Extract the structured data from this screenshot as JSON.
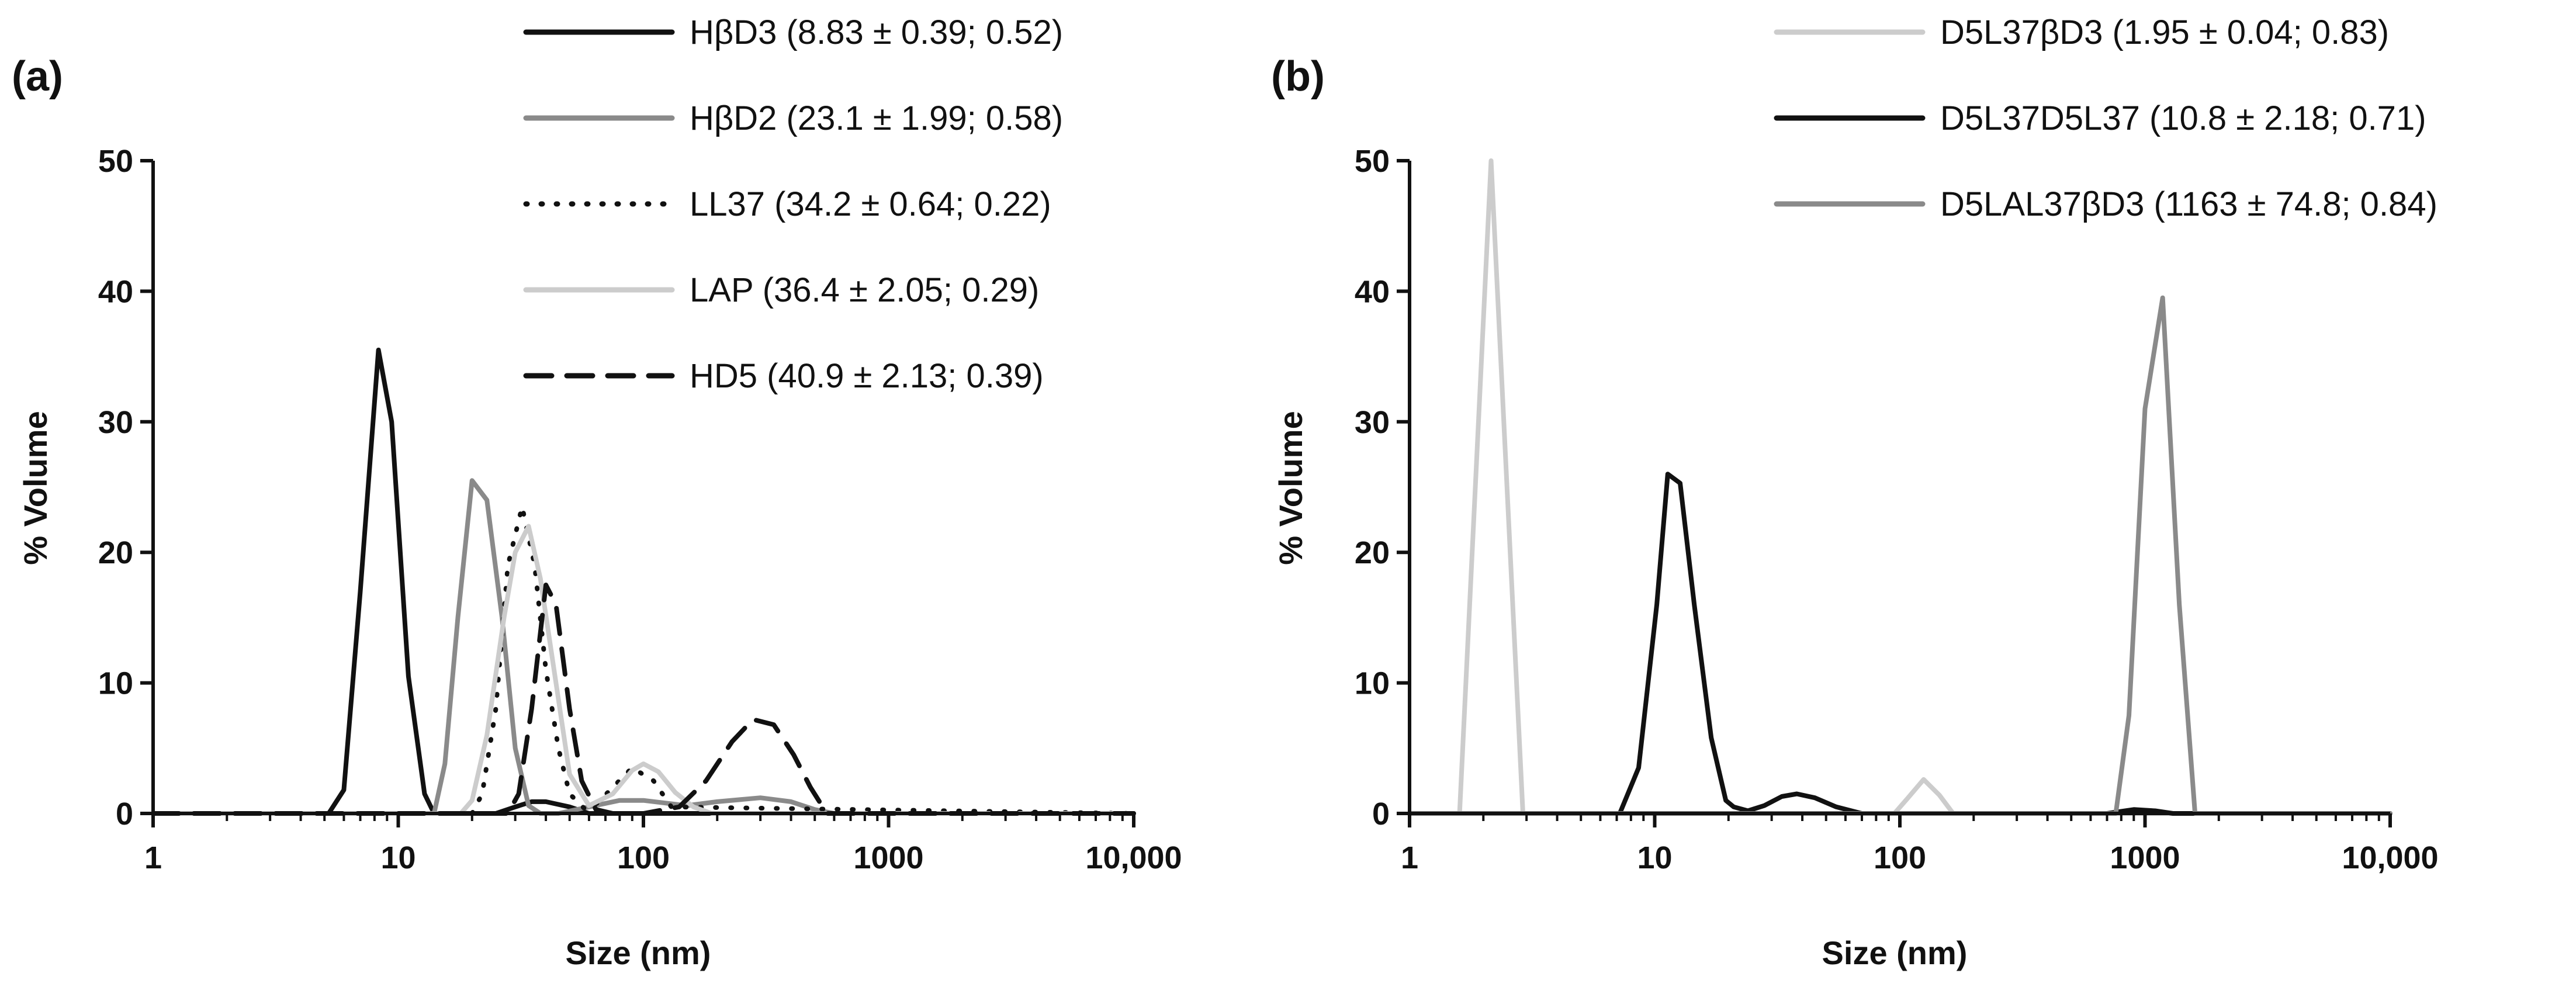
{
  "colors": {
    "black": "#111111",
    "dark_gray": "#8a8a8a",
    "light_gray": "#cccccc"
  },
  "chart_data": [
    {
      "type": "line",
      "panel_label": "(a)",
      "xlabel": "Size (nm)",
      "ylabel": "% Volume",
      "xscale": "log",
      "xlim": [
        1,
        10000
      ],
      "ylim": [
        0,
        50
      ],
      "x_ticks": [
        1,
        10,
        100,
        1000,
        10000
      ],
      "x_tick_labels": [
        "1",
        "10",
        "100",
        "1000",
        "10,000"
      ],
      "y_ticks": [
        0,
        10,
        20,
        30,
        40,
        50
      ],
      "y_tick_labels": [
        "0",
        "10",
        "20",
        "30",
        "40",
        "50"
      ],
      "legend_position": "top-right",
      "series": [
        {
          "name": "HβD3 (8.83 ± 0.39; 0.52)",
          "color": "#111111",
          "style": "solid",
          "x": [
            1,
            5.2,
            6.0,
            7.0,
            8.3,
            9.4,
            11.0,
            12.8,
            14.0,
            16,
            18,
            20,
            22,
            25,
            30,
            35,
            40,
            50,
            60,
            70,
            10000
          ],
          "y": [
            0,
            0,
            1.8,
            17,
            35.5,
            30,
            10.5,
            1.5,
            0,
            0,
            0,
            0,
            0,
            0,
            0.5,
            0.9,
            0.9,
            0.5,
            0,
            0,
            0
          ]
        },
        {
          "name": "HβD2 (23.1 ± 1.99; 0.58)",
          "color": "#8a8a8a",
          "style": "solid",
          "x": [
            1,
            14.0,
            15.5,
            17.5,
            20.0,
            23.0,
            26.5,
            30,
            34,
            38,
            45,
            60,
            80,
            100,
            150,
            200,
            300,
            400,
            500,
            600,
            10000
          ],
          "y": [
            0,
            0,
            3.8,
            15,
            25.5,
            24,
            15,
            5,
            0.6,
            0,
            0,
            0.5,
            1,
            1,
            0.6,
            0.9,
            1.2,
            0.9,
            0.3,
            0,
            0
          ]
        },
        {
          "name": "LL37 (34.2 ± 0.64; 0.22)",
          "color": "#111111",
          "style": "dotted",
          "x": [
            1,
            20,
            22,
            25,
            28,
            32,
            36,
            40,
            45,
            50,
            58,
            65,
            75,
            90,
            110,
            130,
            10000
          ],
          "y": [
            0,
            0,
            1.5,
            8,
            19,
            23.5,
            19,
            11,
            5,
            1.5,
            0.3,
            0.8,
            2,
            3.5,
            2.5,
            0.5,
            0
          ]
        },
        {
          "name": "LAP (36.4 ± 2.05; 0.29)",
          "color": "#cccccc",
          "style": "solid",
          "x": [
            1,
            18,
            20,
            23,
            27,
            30,
            34,
            38,
            44,
            50,
            60,
            75,
            90,
            100,
            115,
            135,
            160,
            190,
            10000
          ],
          "y": [
            0,
            0,
            1,
            6,
            15,
            20,
            22,
            18,
            10,
            3,
            0.6,
            1.5,
            3.3,
            3.8,
            3.2,
            1.6,
            0.5,
            0,
            0
          ]
        },
        {
          "name": "HD5 (40.9 ± 2.13; 0.39)",
          "color": "#111111",
          "style": "dashed",
          "x": [
            1,
            28,
            31,
            35,
            40,
            44,
            50,
            56,
            64,
            75,
            100,
            140,
            180,
            230,
            280,
            340,
            410,
            480,
            560,
            10000
          ],
          "y": [
            0,
            0,
            1.5,
            8,
            17.5,
            16,
            8,
            2.5,
            0.3,
            0,
            0,
            0.5,
            2.5,
            5.5,
            7.2,
            6.8,
            4.5,
            2,
            0,
            0
          ]
        }
      ]
    },
    {
      "type": "line",
      "panel_label": "(b)",
      "xlabel": "Size (nm)",
      "ylabel": "% Volume",
      "xscale": "log",
      "xlim": [
        1,
        10000
      ],
      "ylim": [
        0,
        50
      ],
      "x_ticks": [
        1,
        10,
        100,
        1000,
        10000
      ],
      "x_tick_labels": [
        "1",
        "10",
        "100",
        "1000",
        "10,000"
      ],
      "y_ticks": [
        0,
        10,
        20,
        30,
        40,
        50
      ],
      "y_tick_labels": [
        "0",
        "10",
        "20",
        "30",
        "40",
        "50"
      ],
      "legend_position": "top-right",
      "series": [
        {
          "name": "D5L37βD3 (1.95 ± 0.04; 0.83)",
          "color": "#cccccc",
          "style": "solid",
          "x": [
            1,
            1.6,
            2.15,
            2.9,
            3.0,
            95,
            108,
            125,
            145,
            165,
            10000
          ],
          "y": [
            0,
            0,
            50,
            0,
            0,
            0,
            1.2,
            2.6,
            1.4,
            0,
            0
          ]
        },
        {
          "name": "D5L37D5L37 (10.8 ± 2.18; 0.71)",
          "color": "#111111",
          "style": "solid",
          "x": [
            1,
            7.2,
            8.6,
            10.2,
            11.3,
            12.7,
            14.5,
            17.0,
            19.5,
            21.0,
            24,
            28,
            33,
            38,
            45,
            55,
            70,
            85,
            200,
            700,
            900,
            1100,
            1300,
            10000
          ],
          "y": [
            0,
            0,
            3.5,
            16,
            26,
            25.3,
            16,
            5.8,
            1,
            0.5,
            0.2,
            0.6,
            1.3,
            1.5,
            1.2,
            0.5,
            0,
            0,
            0,
            0,
            0.3,
            0.2,
            0,
            0
          ]
        },
        {
          "name": "D5LAL37βD3 (1163 ± 74.8; 0.84)",
          "color": "#8a8a8a",
          "style": "solid",
          "x": [
            1,
            760,
            860,
            1000,
            1180,
            1380,
            1600,
            10000
          ],
          "y": [
            0,
            0,
            7.5,
            31,
            39.5,
            16,
            0,
            0
          ]
        }
      ]
    }
  ]
}
